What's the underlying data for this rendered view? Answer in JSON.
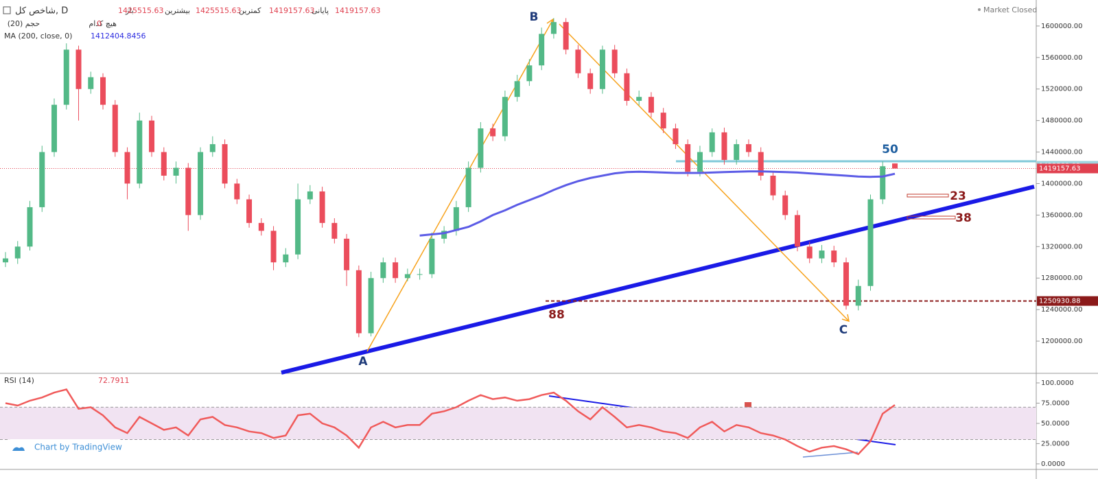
{
  "chart_data": {
    "type": "candlestick",
    "header": {
      "symbol": "شاخص کل, D",
      "open_label": "باز",
      "high_label": "بیشترین",
      "low_label": "کمترین",
      "close_label": "پایانی",
      "none_label": "هیچ کدام",
      "none_value": 0,
      "volume_label": "حجم (20)",
      "ma_label": "MA (200, close, 0)",
      "market": "Market Closed"
    },
    "open": [
      1300000,
      1305000,
      1320000,
      1370000,
      1440000,
      1500000,
      1570000,
      1520000,
      1535000,
      1500000,
      1440000,
      1400000,
      1480000,
      1440000,
      1410000,
      1420000,
      1360000,
      1440000,
      1450000,
      1400000,
      1380000,
      1350000,
      1340000,
      1300000,
      1310000,
      1380000,
      1390000,
      1350000,
      1330000,
      1290000,
      1210000,
      1280000,
      1300000,
      1280000,
      1285000,
      1285000,
      1330000,
      1340000,
      1370000,
      1420000,
      1470000,
      1460000,
      1510000,
      1530000,
      1550000,
      1590000,
      1605000,
      1570000,
      1540000,
      1520000,
      1570000,
      1540000,
      1505000,
      1510000,
      1490000,
      1470000,
      1450000,
      1415000,
      1440000,
      1465000,
      1430000,
      1450000,
      1440000,
      1410000,
      1385000,
      1360000,
      1320000,
      1305000,
      1315000,
      1300000,
      1245000,
      1270000,
      1380000,
      1425515.63
    ],
    "high": [
      1313000,
      1327000,
      1378000,
      1448000,
      1508000,
      1578000,
      1575000,
      1542000,
      1540000,
      1506000,
      1446000,
      1490000,
      1486000,
      1446000,
      1428000,
      1426000,
      1446000,
      1460000,
      1456000,
      1406000,
      1386000,
      1356000,
      1346000,
      1318000,
      1400000,
      1398000,
      1396000,
      1356000,
      1336000,
      1296000,
      1288000,
      1306000,
      1306000,
      1292000,
      1292000,
      1338000,
      1346000,
      1378000,
      1428000,
      1478000,
      1476000,
      1518000,
      1538000,
      1558000,
      1598000,
      1610000,
      1610000,
      1576000,
      1546000,
      1575000,
      1576000,
      1546000,
      1518000,
      1516000,
      1496000,
      1476000,
      1456000,
      1448000,
      1470000,
      1471000,
      1456000,
      1456000,
      1446000,
      1416000,
      1391000,
      1366000,
      1326000,
      1322000,
      1321000,
      1306000,
      1278000,
      1386000,
      1428000,
      1425515.63
    ],
    "low": [
      1294000,
      1298000,
      1315000,
      1364000,
      1434000,
      1494000,
      1480000,
      1514000,
      1494000,
      1434000,
      1380000,
      1394000,
      1434000,
      1404000,
      1400000,
      1340000,
      1354000,
      1434000,
      1394000,
      1374000,
      1344000,
      1334000,
      1290000,
      1294000,
      1304000,
      1374000,
      1344000,
      1324000,
      1270000,
      1205000,
      1206000,
      1274000,
      1274000,
      1276000,
      1278000,
      1280000,
      1324000,
      1334000,
      1364000,
      1414000,
      1454000,
      1454000,
      1504000,
      1524000,
      1544000,
      1584000,
      1564000,
      1534000,
      1514000,
      1514000,
      1534000,
      1499000,
      1499000,
      1484000,
      1464000,
      1444000,
      1409000,
      1409000,
      1434000,
      1424000,
      1424000,
      1434000,
      1404000,
      1379000,
      1354000,
      1314000,
      1299000,
      1299000,
      1294000,
      1240000,
      1239000,
      1264000,
      1374000,
      1419157.63
    ],
    "close": [
      1305000,
      1320000,
      1370000,
      1440000,
      1500000,
      1570000,
      1520000,
      1535000,
      1500000,
      1440000,
      1400000,
      1480000,
      1440000,
      1410000,
      1420000,
      1360000,
      1440000,
      1450000,
      1400000,
      1380000,
      1350000,
      1340000,
      1300000,
      1310000,
      1380000,
      1390000,
      1350000,
      1330000,
      1290000,
      1210000,
      1280000,
      1300000,
      1280000,
      1285000,
      1285000,
      1330000,
      1340000,
      1370000,
      1420000,
      1470000,
      1460000,
      1510000,
      1530000,
      1550000,
      1590000,
      1605000,
      1570000,
      1540000,
      1520000,
      1570000,
      1540000,
      1505000,
      1510000,
      1490000,
      1470000,
      1450000,
      1415000,
      1440000,
      1465000,
      1430000,
      1450000,
      1440000,
      1410000,
      1385000,
      1360000,
      1320000,
      1305000,
      1315000,
      1300000,
      1245000,
      1270000,
      1380000,
      1422000,
      1419157.63
    ],
    "ma": [
      null,
      null,
      null,
      null,
      null,
      null,
      null,
      null,
      null,
      null,
      null,
      null,
      null,
      null,
      null,
      null,
      null,
      null,
      null,
      null,
      null,
      null,
      null,
      null,
      null,
      null,
      null,
      null,
      null,
      null,
      null,
      null,
      null,
      null,
      1334000,
      1335500,
      1337000,
      1341000,
      1345000,
      1352000,
      1360000,
      1366000,
      1373000,
      1379000,
      1385000,
      1392000,
      1398000,
      1403000,
      1407000,
      1410000,
      1413000,
      1414500,
      1415000,
      1414500,
      1414000,
      1413500,
      1413500,
      1413500,
      1414000,
      1414500,
      1415000,
      1415500,
      1415500,
      1415000,
      1414500,
      1414000,
      1413000,
      1412000,
      1411000,
      1410000,
      1409000,
      1408500,
      1409000,
      1412404.8456
    ],
    "up_color": "#53b987",
    "down_color": "#eb4d5c",
    "ma_color": "#5b5be6",
    "ylim": [
      1160000,
      1633000
    ],
    "yticks": [
      {
        "value": 1200000,
        "label": "1200000.00"
      },
      {
        "value": 1240000,
        "label": "1240000.00"
      },
      {
        "value": 1280000,
        "label": "1280000.00"
      },
      {
        "value": 1320000,
        "label": "1320000.00"
      },
      {
        "value": 1360000,
        "label": "1360000.00"
      },
      {
        "value": 1400000,
        "label": "1400000.00"
      },
      {
        "value": 1440000,
        "label": "1440000.00"
      },
      {
        "value": 1480000,
        "label": "1480000.00"
      },
      {
        "value": 1520000,
        "label": "1520000.00"
      },
      {
        "value": 1560000,
        "label": "1560000.00"
      },
      {
        "value": 1600000,
        "label": "1600000.00"
      }
    ],
    "resistance": 1422589.92,
    "support": 1250930.88,
    "annotations": [
      "A",
      "B",
      "C",
      "50",
      "23",
      "38",
      "88"
    ],
    "rsi": {
      "label": "RSI (14)",
      "color": "#f05a5a",
      "band": [
        30,
        70
      ],
      "ylim": [
        -6,
        111
      ],
      "yticks": [
        {
          "value": 0,
          "label": "0.0000"
        },
        {
          "value": 25,
          "label": "25.0000"
        },
        {
          "value": 50,
          "label": "50.0000"
        },
        {
          "value": 75,
          "label": "75.0000"
        },
        {
          "value": 100,
          "label": "100.0000"
        }
      ],
      "values": [
        75,
        72,
        78,
        82,
        88,
        92,
        68,
        70,
        60,
        45,
        38,
        58,
        50,
        42,
        45,
        35,
        55,
        58,
        48,
        45,
        40,
        38,
        32,
        35,
        60,
        62,
        50,
        45,
        35,
        20,
        45,
        52,
        45,
        48,
        48,
        62,
        65,
        70,
        78,
        85,
        80,
        82,
        78,
        80,
        85,
        88,
        78,
        65,
        55,
        70,
        58,
        45,
        48,
        45,
        40,
        38,
        32,
        45,
        52,
        40,
        48,
        45,
        38,
        35,
        30,
        22,
        15,
        20,
        22,
        18,
        12,
        28,
        62,
        72.7911
      ]
    },
    "credit": "Chart by TradingView"
  }
}
